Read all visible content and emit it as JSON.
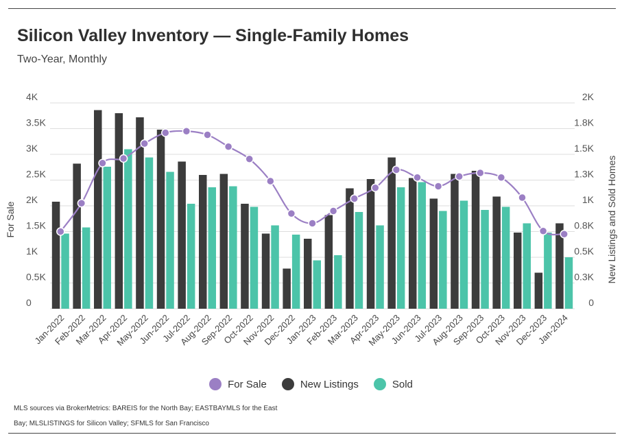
{
  "chart_data": {
    "type": "bar",
    "title": "Silicon Valley Inventory — Single-Family Homes",
    "subtitle": "Two-Year, Monthly",
    "categories": [
      "Jan-2022",
      "Feb-2022",
      "Mar-2022",
      "Apr-2022",
      "May-2022",
      "Jun-2022",
      "Jul-2022",
      "Aug-2022",
      "Sep-2022",
      "Oct-2022",
      "Nov-2022",
      "Dec-2022",
      "Jan-2023",
      "Feb-2023",
      "Mar-2023",
      "Apr-2023",
      "May-2023",
      "Jun-2023",
      "Jul-2023",
      "Aug-2023",
      "Sep-2023",
      "Oct-2023",
      "Nov-2023",
      "Dec-2023",
      "Jan-2024"
    ],
    "series": [
      {
        "name": "For Sale",
        "type": "line",
        "axis": "left",
        "color": "#9b7fc4",
        "values": [
          1500,
          2050,
          2830,
          2920,
          3210,
          3420,
          3450,
          3380,
          3150,
          2910,
          2480,
          1850,
          1660,
          1900,
          2140,
          2350,
          2700,
          2550,
          2380,
          2570,
          2640,
          2550,
          2160,
          1510,
          1450
        ]
      },
      {
        "name": "New Listings",
        "type": "bar",
        "axis": "right",
        "color": "#3c3c3c",
        "values": [
          1040,
          1410,
          1930,
          1900,
          1860,
          1740,
          1430,
          1300,
          1310,
          1020,
          730,
          390,
          680,
          910,
          1170,
          1260,
          1470,
          1270,
          1070,
          1310,
          1340,
          1090,
          740,
          350,
          830
        ]
      },
      {
        "name": "Sold",
        "type": "bar",
        "axis": "right",
        "color": "#4cc4a9",
        "values": [
          730,
          790,
          1380,
          1550,
          1470,
          1330,
          1020,
          1180,
          1190,
          990,
          810,
          720,
          470,
          520,
          940,
          810,
          1180,
          1230,
          950,
          1050,
          960,
          990,
          830,
          740,
          500
        ]
      }
    ],
    "ylabel": "For Sale",
    "y2label": "New Listings and Sold Homes",
    "ylim": [
      0,
      4000
    ],
    "y2lim": [
      0,
      2000
    ],
    "yticks": [
      "0",
      "0.5K",
      "1K",
      "1.5K",
      "2K",
      "2.5K",
      "3K",
      "3.5K",
      "4K"
    ],
    "y2ticks": [
      "0",
      "0.3K",
      "0.5K",
      "0.8K",
      "1K",
      "1.3K",
      "1.5K",
      "1.8K",
      "2K"
    ],
    "grid": true,
    "legend_position": "bottom"
  },
  "footnote": {
    "line1": "MLS sources via BrokerMetrics: BAREIS for the North Bay; EASTBAYMLS for the East",
    "line2": "Bay; MLSLISTINGS for Silicon Valley; SFMLS for San Francisco"
  }
}
